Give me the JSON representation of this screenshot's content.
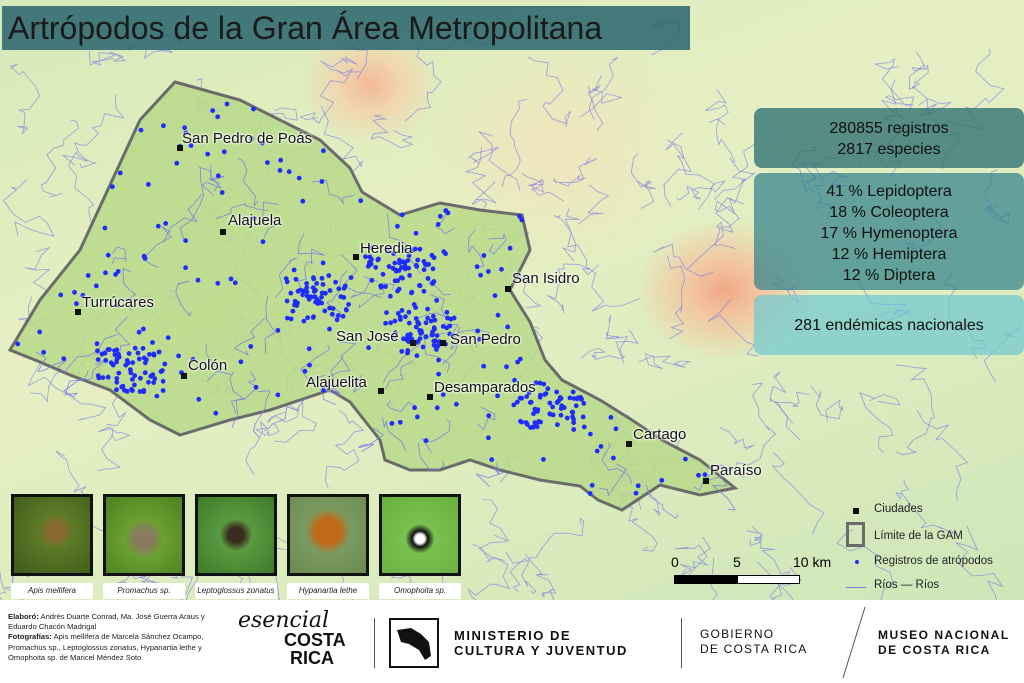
{
  "title": "Artrópodos de la Gran Área Metropolitana",
  "stats": {
    "records": "280855 registros",
    "species": "2817 especies",
    "orders": [
      "41 % Lepidoptera",
      "18 % Coleoptera",
      "17 %  Hymenoptera",
      "12 % Hemiptera",
      "12 % Diptera"
    ],
    "endemic": "281 endémicas nacionales"
  },
  "cities": [
    {
      "name": "San Pedro de Poás"
    },
    {
      "name": "Alajuela"
    },
    {
      "name": "Heredia"
    },
    {
      "name": "San Isidro"
    },
    {
      "name": "Turrúcares"
    },
    {
      "name": "San José"
    },
    {
      "name": "San Pedro"
    },
    {
      "name": "Colón"
    },
    {
      "name": "Alajuelita"
    },
    {
      "name": "Desamparados"
    },
    {
      "name": "Cartago"
    },
    {
      "name": "Paraíso"
    }
  ],
  "photos": [
    {
      "caption": "Apis mellifera"
    },
    {
      "caption": "Promachus sp."
    },
    {
      "caption": "Leptoglossus zonatus"
    },
    {
      "caption": "Hypanartia lethe"
    },
    {
      "caption": "Omophoita sp."
    }
  ],
  "scale": {
    "t0": "0",
    "t5": "5",
    "t10": "10 km"
  },
  "legend": {
    "cities": "Ciudades",
    "limit": "Límite de la GAM",
    "records": "Registros de atrópodos",
    "rivers": "Ríos — Ríos"
  },
  "colors": {
    "records": "#1f2bff",
    "rivers": "#7a7ae8",
    "limit": "#6b6b6b",
    "gam_fill": "#b8d98a"
  },
  "footer": {
    "credits_l1_bold": "Elaboró:",
    "credits_l1": " Andrés Duarte Conrad, Ma. José Guerra Araus y Eduardo Chacón Madrigal",
    "credits_l2_bold": "Fotografías:",
    "credits_l2": "Apis mellifera de Marcela Sánchez Ocampo, Promachus sp., Leptoglossus zonatus, Hypanartia lethe y Omophoita sp. de Maricel Méndez Soto",
    "logo_esencial": "esencial",
    "logo_costa": "COSTA",
    "logo_rica": "RICA",
    "ministry_l1": "MINISTERIO DE",
    "ministry_l2": "CULTURA Y JUVENTUD",
    "gob_l1": "GOBIERNO",
    "gob_l2": "DE COSTA RICA",
    "museo_l1": "MUSEO NACIONAL",
    "museo_l2": "DE COSTA RICA"
  }
}
